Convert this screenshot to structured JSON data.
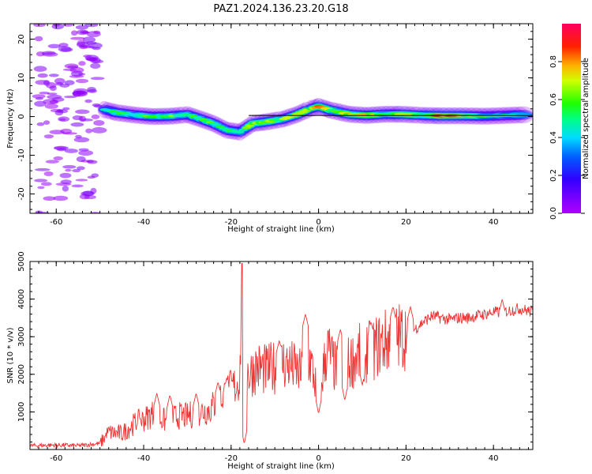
{
  "figure": {
    "title": "PAZ1.2024.136.23.20.G18"
  },
  "chart_data": [
    {
      "type": "heatmap",
      "xlabel": "Height of straight line (km)",
      "ylabel": "Frequency (Hz)",
      "xlim": [
        -66,
        49
      ],
      "ylim": [
        -25,
        24
      ],
      "xticks": [
        -60,
        -40,
        -20,
        0,
        20,
        40
      ],
      "yticks": [
        -20,
        -10,
        0,
        10,
        20
      ],
      "colorbar": {
        "label": "Normalized spectral amplitude",
        "range": [
          0,
          1
        ],
        "ticks": [
          0.0,
          0.2,
          0.4,
          0.6,
          0.8
        ],
        "colormap": "gist_rainbow_r"
      },
      "reference_line": {
        "from_x": -16,
        "to_x": 49,
        "y": 0.3,
        "color": "#000000"
      },
      "ridge": [
        {
          "x": -49,
          "y": 1.8,
          "amp": 0.45
        },
        {
          "x": -46,
          "y": 1.0,
          "amp": 0.55
        },
        {
          "x": -42,
          "y": 0.4,
          "amp": 0.5
        },
        {
          "x": -38,
          "y": 0.0,
          "amp": 0.55
        },
        {
          "x": -34,
          "y": 0.1,
          "amp": 0.6
        },
        {
          "x": -30,
          "y": 0.5,
          "amp": 0.5
        },
        {
          "x": -27,
          "y": -0.6,
          "amp": 0.55
        },
        {
          "x": -24,
          "y": -1.8,
          "amp": 0.55
        },
        {
          "x": -21,
          "y": -3.5,
          "amp": 0.5
        },
        {
          "x": -18,
          "y": -4.0,
          "amp": 0.45
        },
        {
          "x": -15,
          "y": -1.8,
          "amp": 0.7
        },
        {
          "x": -12,
          "y": -1.4,
          "amp": 0.65
        },
        {
          "x": -8,
          "y": -0.6,
          "amp": 0.6
        },
        {
          "x": -5,
          "y": 0.5,
          "amp": 0.7
        },
        {
          "x": -2,
          "y": 2.0,
          "amp": 0.6
        },
        {
          "x": 0,
          "y": 2.6,
          "amp": 0.8
        },
        {
          "x": 3,
          "y": 1.6,
          "amp": 0.6
        },
        {
          "x": 7,
          "y": 0.6,
          "amp": 0.65
        },
        {
          "x": 11,
          "y": 0.3,
          "amp": 0.8
        },
        {
          "x": 15,
          "y": 0.6,
          "amp": 0.6
        },
        {
          "x": 19,
          "y": 0.6,
          "amp": 0.7
        },
        {
          "x": 24,
          "y": 0.3,
          "amp": 0.55
        },
        {
          "x": 28,
          "y": 0.2,
          "amp": 0.85
        },
        {
          "x": 33,
          "y": 0.2,
          "amp": 0.7
        },
        {
          "x": 38,
          "y": 0.1,
          "amp": 0.5
        },
        {
          "x": 43,
          "y": 0.3,
          "amp": 0.45
        },
        {
          "x": 48,
          "y": 0.5,
          "amp": 0.45
        }
      ],
      "noise_band": {
        "x": [
          -64,
          -50
        ],
        "y": [
          -25,
          24
        ],
        "amp": 0.2
      }
    },
    {
      "type": "line",
      "xlabel": "Height of straight line (km)",
      "ylabel": "SNR (10 * v/v)",
      "xlim": [
        -66,
        49
      ],
      "ylim": [
        0,
        5000
      ],
      "xticks": [
        -60,
        -40,
        -20,
        0,
        20,
        40
      ],
      "yticks": [
        1000,
        2000,
        3000,
        4000,
        5000
      ],
      "color": "#ee3333",
      "x": [
        -66,
        -60,
        -55,
        -50,
        -48,
        -45,
        -42,
        -40,
        -38,
        -35,
        -32,
        -30,
        -28,
        -25,
        -23,
        -21,
        -19,
        -18,
        -17.5,
        -17,
        -16,
        -14,
        -12,
        -10,
        -8,
        -6,
        -4,
        -2,
        0,
        2,
        4,
        6,
        8,
        10,
        12,
        14,
        16,
        18,
        20,
        22,
        24,
        26,
        28,
        30,
        32,
        34,
        36,
        38,
        40,
        42,
        44,
        46,
        49
      ],
      "y": [
        100,
        120,
        100,
        160,
        450,
        420,
        700,
        800,
        950,
        750,
        900,
        880,
        1000,
        1050,
        1300,
        1500,
        1700,
        1900,
        4950,
        2400,
        2000,
        2200,
        2100,
        2200,
        2300,
        2200,
        2000,
        2400,
        1400,
        2700,
        2100,
        2200,
        2400,
        2600,
        2600,
        2800,
        2900,
        3000,
        3050,
        3200,
        3400,
        3550,
        3500,
        3450,
        3500,
        3500,
        3550,
        3600,
        3650,
        3650,
        3700,
        3750,
        3650
      ],
      "peaks": [
        {
          "x": -48,
          "y": 550
        },
        {
          "x": -41,
          "y": 900
        },
        {
          "x": -37,
          "y": 1500
        },
        {
          "x": -34,
          "y": 1450
        },
        {
          "x": -28,
          "y": 1500
        },
        {
          "x": -23,
          "y": 1800
        },
        {
          "x": -21,
          "y": 1900
        },
        {
          "x": -9,
          "y": 2900
        },
        {
          "x": -3,
          "y": 3600
        },
        {
          "x": 5,
          "y": 3200
        },
        {
          "x": 12,
          "y": 3400
        },
        {
          "x": 17,
          "y": 3800
        },
        {
          "x": 21,
          "y": 3800
        },
        {
          "x": 42,
          "y": 4000
        }
      ],
      "dips": [
        {
          "x": -17,
          "y": 150
        },
        {
          "x": 0,
          "y": 950
        },
        {
          "x": 6,
          "y": 1300
        },
        {
          "x": 10,
          "y": 1700
        }
      ]
    }
  ]
}
